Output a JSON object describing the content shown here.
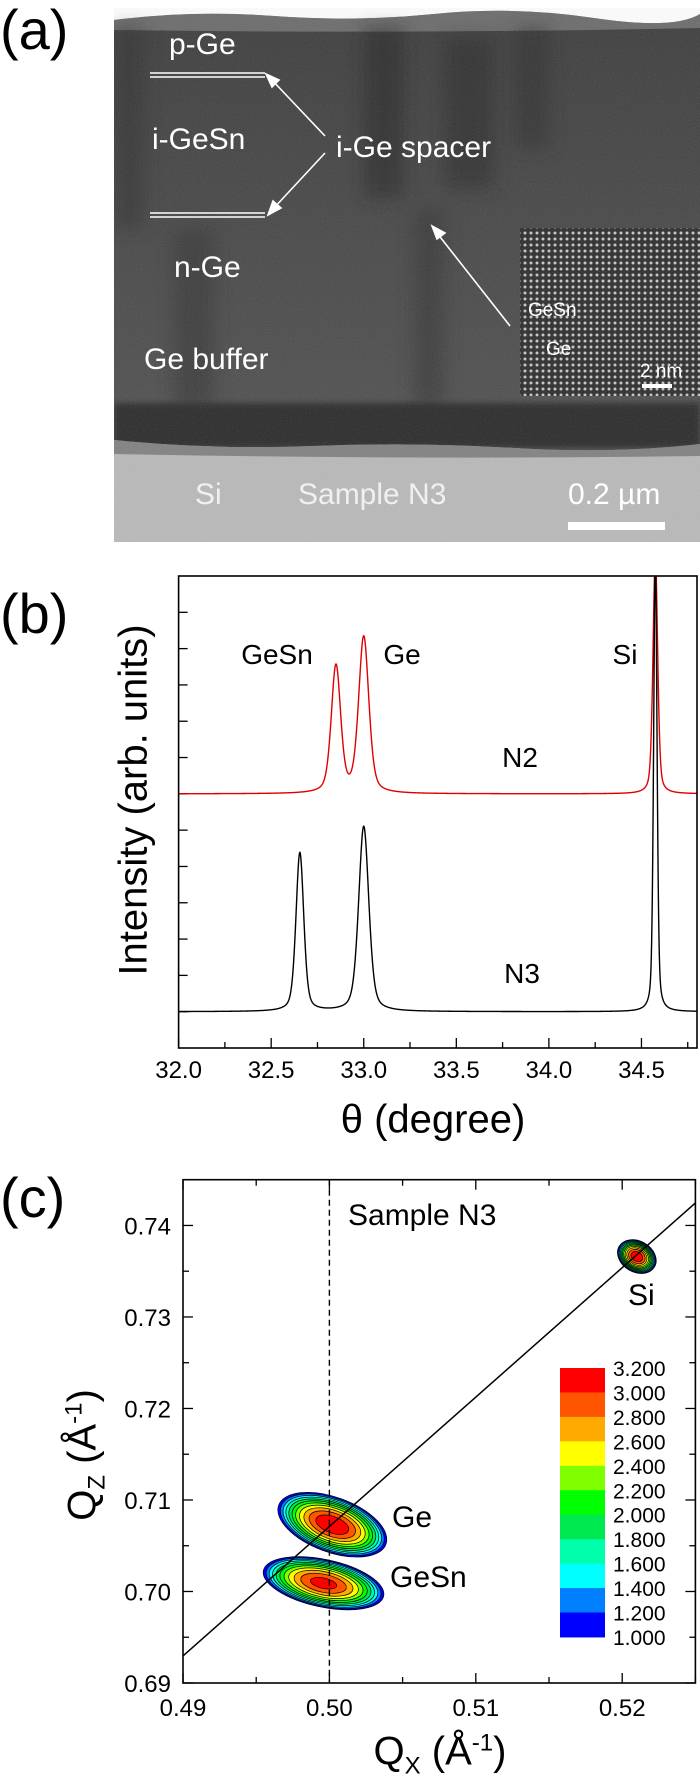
{
  "panel_a": {
    "label": "(a)",
    "layers": {
      "p_ge": "p-Ge",
      "i_gesn": "i-GeSn",
      "spacer": "i-Ge spacer",
      "n_ge": "n-Ge",
      "buffer": "Ge buffer",
      "si": "Si",
      "sample": "Sample N3",
      "scale_bar": "0.2 µm"
    },
    "inset": {
      "gesn": "GeSn",
      "ge": "Ge",
      "scale_bar": "2 nm"
    }
  },
  "panel_b": {
    "label": "(b)"
  },
  "panel_c": {
    "label": "(c)"
  },
  "chart_data": [
    {
      "type": "line",
      "xlabel": "θ (degree)",
      "ylabel": "Intensity (arb. units)",
      "xlim": [
        32.0,
        34.8
      ],
      "ylim": [
        0,
        13
      ],
      "xticks": [
        "32.0",
        "32.5",
        "33.0",
        "33.5",
        "34.0",
        "34.5"
      ],
      "grid": false,
      "series": [
        {
          "name": "N2",
          "color": "#e00000",
          "baseline": 7.0,
          "peaks": [
            {
              "label": "GeSn",
              "theta": 32.85,
              "peak_top": 10.5,
              "fwhm": 0.06
            },
            {
              "label": "Ge",
              "theta": 33.0,
              "peak_top": 11.3,
              "fwhm": 0.065
            },
            {
              "label": "Si",
              "theta": 34.575,
              "peak_top": 13.5,
              "fwhm": 0.03
            }
          ]
        },
        {
          "name": "N3",
          "color": "#000000",
          "baseline": 1.0,
          "peaks": [
            {
              "label": "GeSn",
              "theta": 32.655,
              "peak_top": 5.37,
              "fwhm": 0.05
            },
            {
              "label": "Ge",
              "theta": 33.0,
              "peak_top": 6.1,
              "fwhm": 0.065
            },
            {
              "label": "Si",
              "theta": 34.575,
              "peak_top": 13.5,
              "fwhm": 0.022
            }
          ]
        }
      ],
      "annotations": [
        "GeSn",
        "Ge",
        "Si"
      ]
    },
    {
      "type": "heatmap",
      "title": "Sample N3",
      "xlabel": {
        "symbol": "Q",
        "sub": "X",
        "open": " (Å",
        "sup": "-1",
        "close": ")"
      },
      "ylabel": {
        "symbol": "Q",
        "sub": "Z",
        "open": " (Å",
        "sup": "-1",
        "close": ")"
      },
      "xlim": [
        0.49,
        0.525
      ],
      "ylim": [
        0.69,
        0.745
      ],
      "xticks": [
        "0.49",
        "0.50",
        "0.51",
        "0.52"
      ],
      "yticks": [
        "0.69",
        "0.70",
        "0.71",
        "0.72",
        "0.73",
        "0.74"
      ],
      "reference_vertical_qx": 0.5,
      "relaxed_line_slope": 1.4142,
      "peaks": [
        {
          "label": "Ge",
          "qx": 0.5002,
          "qz": 0.7073,
          "max_level": 3.2,
          "half_width_qx": 0.0039,
          "half_width_qz": 0.003
        },
        {
          "label": "GeSn",
          "qx": 0.4996,
          "qz": 0.7009,
          "max_level": 3.1,
          "half_width_qx": 0.0042,
          "half_width_qz": 0.0026
        },
        {
          "label": "Si",
          "qx": 0.521,
          "qz": 0.7366,
          "max_level": 3.2,
          "half_width_qx": 0.0014,
          "half_width_qz": 0.0017
        }
      ],
      "colorbar": {
        "labels": [
          "3.200",
          "3.000",
          "2.800",
          "2.600",
          "2.400",
          "2.200",
          "2.000",
          "1.800",
          "1.600",
          "1.400",
          "1.200",
          "1.000"
        ],
        "colors": [
          "#ff0000",
          "#ff5500",
          "#ffaa00",
          "#ffff00",
          "#80ff00",
          "#00ff00",
          "#00e850",
          "#00ffaa",
          "#00ffff",
          "#0080ff",
          "#0000ff"
        ]
      }
    }
  ]
}
